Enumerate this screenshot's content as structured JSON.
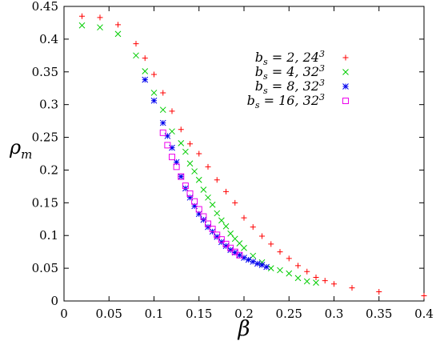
{
  "chart_data": {
    "type": "scatter",
    "xlabel": "β",
    "ylabel": "ρ",
    "ylabel_subscript": "m",
    "xlim": [
      0,
      0.4
    ],
    "ylim": [
      0,
      0.45
    ],
    "x_ticks": [
      0,
      0.05,
      0.1,
      0.15,
      0.2,
      0.25,
      0.3,
      0.35,
      0.4
    ],
    "x_tick_labels": [
      "0",
      "0.05",
      "0.1",
      "0.15",
      "0.2",
      "0.25",
      "0.3",
      "0.35",
      "0.4"
    ],
    "y_ticks": [
      0,
      0.05,
      0.1,
      0.15,
      0.2,
      0.25,
      0.3,
      0.35,
      0.4,
      0.45
    ],
    "y_tick_labels": [
      "0",
      "0.05",
      "0.1",
      "0.15",
      "0.2",
      "0.25",
      "0.3",
      "0.35",
      "0.4",
      "0.45"
    ],
    "grid": false,
    "legend_position": "top-right",
    "series": [
      {
        "name": "b_s = 2, 24^3",
        "label_main": "b",
        "label_sub": "s",
        "label_rest": " = 2, 24",
        "label_sup": "3",
        "color": "#ff0000",
        "marker": "plus",
        "x": [
          0.02,
          0.04,
          0.06,
          0.08,
          0.09,
          0.1,
          0.11,
          0.12,
          0.13,
          0.14,
          0.15,
          0.16,
          0.17,
          0.18,
          0.19,
          0.2,
          0.21,
          0.22,
          0.23,
          0.24,
          0.25,
          0.26,
          0.27,
          0.28,
          0.29,
          0.3,
          0.32,
          0.35,
          0.4
        ],
        "y": [
          0.435,
          0.433,
          0.422,
          0.393,
          0.371,
          0.346,
          0.318,
          0.29,
          0.262,
          0.24,
          0.225,
          0.205,
          0.185,
          0.167,
          0.15,
          0.127,
          0.113,
          0.099,
          0.087,
          0.075,
          0.065,
          0.054,
          0.045,
          0.036,
          0.031,
          0.026,
          0.02,
          0.014,
          0.008
        ]
      },
      {
        "name": "b_s = 4, 32^3",
        "label_main": "b",
        "label_sub": "s",
        "label_rest": " = 4, 32",
        "label_sup": "3",
        "color": "#00cc00",
        "marker": "cross",
        "x": [
          0.02,
          0.04,
          0.06,
          0.08,
          0.09,
          0.1,
          0.11,
          0.12,
          0.13,
          0.135,
          0.14,
          0.145,
          0.15,
          0.155,
          0.16,
          0.165,
          0.17,
          0.175,
          0.18,
          0.185,
          0.19,
          0.195,
          0.2,
          0.21,
          0.22,
          0.23,
          0.24,
          0.25,
          0.26,
          0.27,
          0.28
        ],
        "y": [
          0.421,
          0.418,
          0.408,
          0.375,
          0.351,
          0.318,
          0.292,
          0.259,
          0.241,
          0.228,
          0.21,
          0.198,
          0.185,
          0.17,
          0.158,
          0.147,
          0.134,
          0.123,
          0.114,
          0.103,
          0.095,
          0.088,
          0.081,
          0.069,
          0.059,
          0.05,
          0.047,
          0.042,
          0.035,
          0.03,
          0.028
        ]
      },
      {
        "name": "b_s = 8, 32^3",
        "label_main": "b",
        "label_sub": "s",
        "label_rest": " = 8, 32",
        "label_sup": "3",
        "color": "#0000ee",
        "marker": "star",
        "x": [
          0.09,
          0.1,
          0.11,
          0.115,
          0.12,
          0.125,
          0.13,
          0.135,
          0.14,
          0.145,
          0.15,
          0.155,
          0.16,
          0.165,
          0.17,
          0.175,
          0.18,
          0.185,
          0.19,
          0.195,
          0.2,
          0.205,
          0.21,
          0.215,
          0.22,
          0.225
        ],
        "y": [
          0.338,
          0.306,
          0.272,
          0.252,
          0.234,
          0.212,
          0.19,
          0.172,
          0.158,
          0.145,
          0.133,
          0.124,
          0.113,
          0.106,
          0.098,
          0.09,
          0.084,
          0.078,
          0.074,
          0.07,
          0.066,
          0.063,
          0.06,
          0.057,
          0.055,
          0.052
        ]
      },
      {
        "name": "b_s = 16, 32^3",
        "label_main": "b",
        "label_sub": "s",
        "label_rest": " = 16, 32",
        "label_sup": "3",
        "color": "#ee00ee",
        "marker": "square",
        "x": [
          0.11,
          0.115,
          0.12,
          0.125,
          0.13,
          0.135,
          0.14,
          0.145,
          0.15,
          0.155,
          0.16,
          0.165,
          0.17,
          0.175,
          0.18,
          0.185,
          0.19,
          0.195
        ],
        "y": [
          0.257,
          0.238,
          0.22,
          0.205,
          0.19,
          0.176,
          0.164,
          0.152,
          0.14,
          0.129,
          0.118,
          0.11,
          0.101,
          0.094,
          0.087,
          0.081,
          0.075,
          0.07
        ]
      }
    ]
  }
}
